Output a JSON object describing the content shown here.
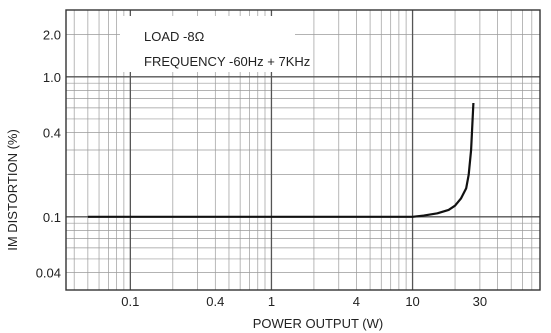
{
  "chart_data": {
    "type": "line",
    "title": "",
    "xlabel": "POWER OUTPUT (W)",
    "ylabel": "IM DISTORTION (%)",
    "xscale": "log",
    "yscale": "log",
    "xlim": [
      0.035,
      80
    ],
    "ylim": [
      0.03,
      3.0
    ],
    "xticks": [
      {
        "value": 0.1,
        "label": "0.1"
      },
      {
        "value": 0.4,
        "label": "0.4"
      },
      {
        "value": 1,
        "label": "1"
      },
      {
        "value": 4,
        "label": "4"
      },
      {
        "value": 10,
        "label": "10"
      },
      {
        "value": 30,
        "label": "30"
      }
    ],
    "yticks": [
      {
        "value": 2.0,
        "label": "2.0"
      },
      {
        "value": 1.0,
        "label": "1.0"
      },
      {
        "value": 0.4,
        "label": "0.4"
      },
      {
        "value": 0.1,
        "label": "0.1"
      },
      {
        "value": 0.04,
        "label": "0.04"
      }
    ],
    "annotations": [
      "LOAD -8Ω",
      "FREQUENCY -60Hz + 7KHz"
    ],
    "grid": true,
    "legend": "none",
    "series": [
      {
        "x": [
          0.05,
          0.1,
          0.2,
          0.4,
          1,
          2,
          4,
          8,
          10,
          12,
          15,
          18,
          20,
          22,
          24,
          25,
          26,
          27
        ],
        "y": [
          0.1,
          0.1,
          0.1,
          0.1,
          0.1,
          0.1,
          0.1,
          0.1,
          0.1,
          0.102,
          0.106,
          0.112,
          0.12,
          0.135,
          0.16,
          0.2,
          0.3,
          0.65
        ]
      }
    ],
    "colors": {
      "line": "#111111",
      "grid": "#555555",
      "minor_grid": "#9a9a9a",
      "frame": "#333333"
    }
  }
}
